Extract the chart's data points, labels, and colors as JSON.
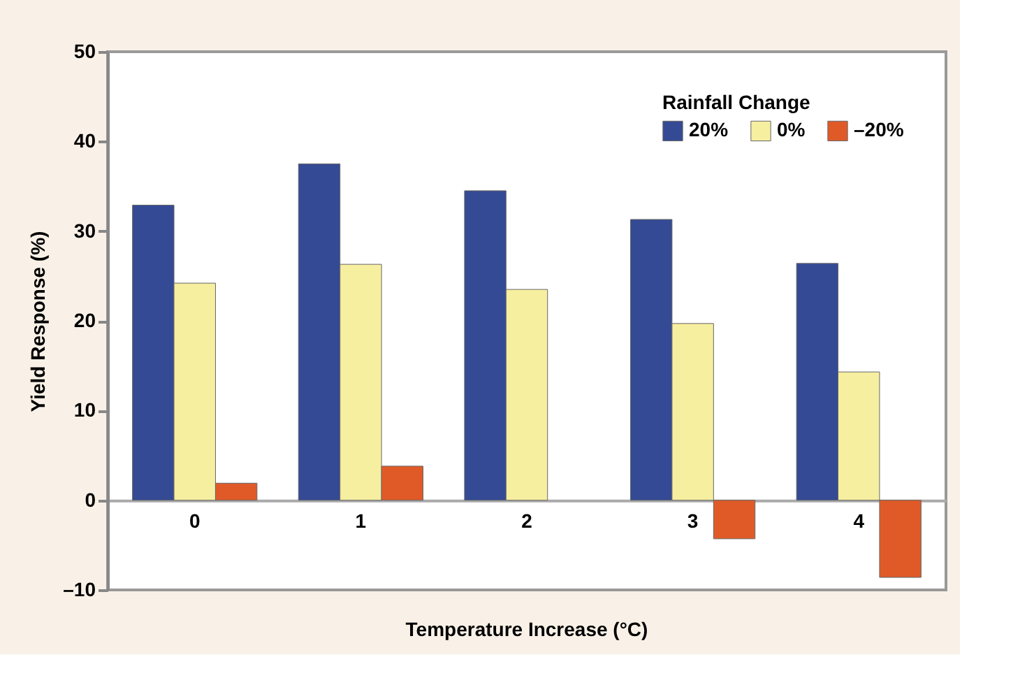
{
  "chart_data": {
    "type": "bar",
    "xlabel": "Temperature Increase (°C)",
    "ylabel": "Yield Response (%)",
    "legend_title": "Rainfall Change",
    "categories": [
      "0",
      "1",
      "2",
      "3",
      "4"
    ],
    "series": [
      {
        "name": "20%",
        "color": "#344a94",
        "values": [
          32.9,
          37.5,
          34.5,
          31.3,
          26.4
        ]
      },
      {
        "name": "0%",
        "color": "#f7efa0",
        "values": [
          24.2,
          26.3,
          23.5,
          19.7,
          14.3
        ]
      },
      {
        "name": "–20%",
        "color": "#e05a28",
        "values": [
          1.9,
          3.8,
          null,
          -4.3,
          -8.6
        ]
      }
    ],
    "ylim": [
      -10,
      50
    ],
    "yticks": [
      {
        "value": -10,
        "label": "–10"
      },
      0,
      10,
      20,
      30,
      40,
      50
    ],
    "grid": false,
    "legend": "top right"
  }
}
